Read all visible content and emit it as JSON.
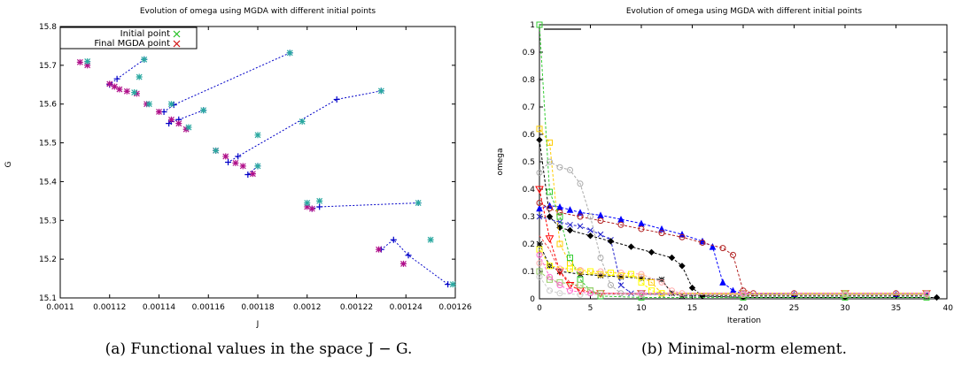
{
  "chart_data": [
    {
      "type": "scatter",
      "title": "Evolution of omega using MGDA with different initial points",
      "xlabel": "J",
      "ylabel": "G",
      "xlim": [
        0.0011,
        0.00126
      ],
      "ylim": [
        15.1,
        15.8
      ],
      "x_ticks": [
        "0.0011",
        "0.00112",
        "0.00114",
        "0.00116",
        "0.00118",
        "0.0012",
        "0.00122",
        "0.00124",
        "0.00126"
      ],
      "y_ticks": [
        "15.1",
        "15.2",
        "15.3",
        "15.4",
        "15.5",
        "15.6",
        "15.7",
        "15.8"
      ],
      "legend": [
        "Initial point",
        "Final MGDA point"
      ],
      "legend_position": "top-left",
      "colors": {
        "path": "#0000c8",
        "initial": "#22c022",
        "final": "#d01010"
      },
      "caption": "(a) Functional values in the space J − G.",
      "paths": [
        [
          [
            0.001193,
            15.732
          ],
          [
            0.001146,
            15.598
          ],
          [
            0.001142,
            15.58
          ]
        ],
        [
          [
            0.001158,
            15.584
          ],
          [
            0.001148,
            15.56
          ],
          [
            0.001145,
            15.555
          ],
          [
            0.001144,
            15.55
          ]
        ],
        [
          [
            0.00123,
            15.634
          ],
          [
            0.001212,
            15.612
          ],
          [
            0.001172,
            15.465
          ],
          [
            0.001168,
            15.45
          ]
        ],
        [
          [
            0.001245,
            15.345
          ],
          [
            0.001205,
            15.335
          ],
          [
            0.001202,
            15.33
          ]
        ],
        [
          [
            0.001257,
            15.135
          ],
          [
            0.001241,
            15.21
          ],
          [
            0.001235,
            15.25
          ],
          [
            0.00123,
            15.225
          ]
        ],
        [
          [
            0.001134,
            15.715
          ],
          [
            0.001123,
            15.665
          ],
          [
            0.00112,
            15.65
          ]
        ],
        [
          [
            0.00118,
            15.44
          ],
          [
            0.001176,
            15.418
          ]
        ]
      ],
      "initial_points": [
        [
          0.001117,
          15.765
        ],
        [
          0.001111,
          15.71
        ],
        [
          0.001134,
          15.715
        ],
        [
          0.001132,
          15.67
        ],
        [
          0.00113,
          15.63
        ],
        [
          0.001136,
          15.6
        ],
        [
          0.001145,
          15.6
        ],
        [
          0.001158,
          15.584
        ],
        [
          0.001152,
          15.54
        ],
        [
          0.001193,
          15.732
        ],
        [
          0.00123,
          15.634
        ],
        [
          0.001198,
          15.555
        ],
        [
          0.00118,
          15.52
        ],
        [
          0.00118,
          15.44
        ],
        [
          0.001163,
          15.48
        ],
        [
          0.001205,
          15.35
        ],
        [
          0.001245,
          15.345
        ],
        [
          0.0012,
          15.345
        ],
        [
          0.00125,
          15.25
        ],
        [
          0.001259,
          15.135
        ]
      ],
      "final_points": [
        [
          0.001108,
          15.708
        ],
        [
          0.001111,
          15.7
        ],
        [
          0.00112,
          15.652
        ],
        [
          0.001122,
          15.645
        ],
        [
          0.001124,
          15.638
        ],
        [
          0.001127,
          15.633
        ],
        [
          0.001131,
          15.627
        ],
        [
          0.001135,
          15.6
        ],
        [
          0.00114,
          15.58
        ],
        [
          0.001145,
          15.56
        ],
        [
          0.001148,
          15.55
        ],
        [
          0.001151,
          15.535
        ],
        [
          0.001163,
          15.48
        ],
        [
          0.001167,
          15.465
        ],
        [
          0.001171,
          15.448
        ],
        [
          0.001174,
          15.44
        ],
        [
          0.001178,
          15.42
        ],
        [
          0.0012,
          15.335
        ],
        [
          0.001202,
          15.33
        ],
        [
          0.001229,
          15.225
        ],
        [
          0.001239,
          15.188
        ]
      ]
    },
    {
      "type": "line",
      "title": "Evolution of omega using MGDA with different initial points",
      "xlabel": "Iteration",
      "ylabel": "omega",
      "xlim": [
        0,
        40
      ],
      "ylim": [
        0,
        1
      ],
      "x_ticks": [
        "0",
        "5",
        "10",
        "15",
        "20",
        "25",
        "30",
        "35",
        "40"
      ],
      "y_ticks": [
        "0",
        "0.1",
        "0.2",
        "0.3",
        "0.4",
        "0.5",
        "0.6",
        "0.7",
        "0.8",
        "0.9",
        "1"
      ],
      "caption": "(b) Minimal-norm element.",
      "series": [
        {
          "color": "#0000ff",
          "marker": "tri",
          "values": [
            [
              0,
              0.33
            ],
            [
              1,
              0.34
            ],
            [
              2,
              0.335
            ],
            [
              3,
              0.325
            ],
            [
              4,
              0.315
            ],
            [
              6,
              0.305
            ],
            [
              8,
              0.29
            ],
            [
              10,
              0.275
            ],
            [
              12,
              0.255
            ],
            [
              14,
              0.235
            ],
            [
              16,
              0.21
            ],
            [
              17,
              0.19
            ],
            [
              18,
              0.06
            ],
            [
              19,
              0.03
            ],
            [
              20,
              0.018
            ],
            [
              25,
              0.015
            ],
            [
              30,
              0.015
            ],
            [
              35,
              0.015
            ],
            [
              38,
              0.015
            ]
          ]
        },
        {
          "color": "#b22222",
          "marker": "circle",
          "values": [
            [
              0,
              0.35
            ],
            [
              1,
              0.33
            ],
            [
              2,
              0.315
            ],
            [
              4,
              0.3
            ],
            [
              6,
              0.285
            ],
            [
              8,
              0.27
            ],
            [
              10,
              0.255
            ],
            [
              12,
              0.24
            ],
            [
              14,
              0.225
            ],
            [
              16,
              0.205
            ],
            [
              18,
              0.185
            ],
            [
              19,
              0.16
            ],
            [
              20,
              0.03
            ],
            [
              21,
              0.02
            ],
            [
              25,
              0.02
            ],
            [
              30,
              0.02
            ],
            [
              35,
              0.02
            ],
            [
              38,
              0.02
            ]
          ]
        },
        {
          "color": "#2222cc",
          "marker": "x",
          "values": [
            [
              0,
              0.3
            ],
            [
              2,
              0.28
            ],
            [
              3,
              0.27
            ],
            [
              4,
              0.265
            ],
            [
              5,
              0.25
            ],
            [
              6,
              0.235
            ],
            [
              7,
              0.215
            ],
            [
              8,
              0.05
            ],
            [
              9,
              0.02
            ],
            [
              12,
              0.015
            ],
            [
              20,
              0.015
            ],
            [
              30,
              0.015
            ],
            [
              38,
              0.015
            ]
          ]
        },
        {
          "color": "#000000",
          "marker": "diamond",
          "values": [
            [
              0,
              0.58
            ],
            [
              1,
              0.3
            ],
            [
              2,
              0.26
            ],
            [
              3,
              0.25
            ],
            [
              5,
              0.23
            ],
            [
              7,
              0.21
            ],
            [
              9,
              0.19
            ],
            [
              11,
              0.17
            ],
            [
              13,
              0.15
            ],
            [
              14,
              0.12
            ],
            [
              15,
              0.04
            ],
            [
              16,
              0.01
            ],
            [
              20,
              0.005
            ],
            [
              30,
              0.005
            ],
            [
              39,
              0.005
            ]
          ]
        },
        {
          "color": "#000000",
          "marker": "star",
          "values": [
            [
              0,
              0.2
            ],
            [
              1,
              0.12
            ],
            [
              2,
              0.1
            ],
            [
              4,
              0.09
            ],
            [
              6,
              0.085
            ],
            [
              8,
              0.08
            ],
            [
              10,
              0.075
            ],
            [
              12,
              0.07
            ],
            [
              13,
              0.02
            ],
            [
              14,
              0.01
            ],
            [
              20,
              0.01
            ],
            [
              30,
              0.01
            ],
            [
              38,
              0.01
            ]
          ]
        },
        {
          "color": "#ff0000",
          "marker": "invtri",
          "values": [
            [
              0,
              0.4
            ],
            [
              1,
              0.22
            ],
            [
              2,
              0.1
            ],
            [
              3,
              0.05
            ],
            [
              4,
              0.03
            ],
            [
              6,
              0.02
            ],
            [
              10,
              0.02
            ],
            [
              20,
              0.02
            ],
            [
              30,
              0.02
            ],
            [
              38,
              0.02
            ]
          ]
        },
        {
          "color": "#ee4444",
          "marker": "none",
          "values": [
            [
              0,
              0.23
            ],
            [
              1,
              0.18
            ],
            [
              2,
              0.1
            ],
            [
              3,
              0.06
            ],
            [
              4,
              0.04
            ],
            [
              5,
              0.02
            ],
            [
              10,
              0.015
            ],
            [
              20,
              0.015
            ],
            [
              30,
              0.015
            ],
            [
              38,
              0.015
            ]
          ]
        },
        {
          "color": "#ffcc00",
          "marker": "square",
          "values": [
            [
              0,
              0.62
            ],
            [
              1,
              0.57
            ],
            [
              2,
              0.2
            ],
            [
              3,
              0.13
            ],
            [
              4,
              0.1
            ],
            [
              6,
              0.09
            ],
            [
              8,
              0.085
            ],
            [
              10,
              0.08
            ],
            [
              11,
              0.06
            ],
            [
              12,
              0.02
            ],
            [
              20,
              0.015
            ],
            [
              30,
              0.015
            ],
            [
              38,
              0.015
            ]
          ]
        },
        {
          "color": "#33cc33",
          "marker": "square",
          "values": [
            [
              0,
              1.0
            ],
            [
              1,
              0.39
            ],
            [
              2,
              0.3
            ],
            [
              3,
              0.15
            ],
            [
              4,
              0.07
            ],
            [
              5,
              0.03
            ],
            [
              6,
              0.01
            ],
            [
              10,
              0.005
            ],
            [
              20,
              0.005
            ],
            [
              30,
              0.005
            ],
            [
              38,
              0.005
            ]
          ]
        },
        {
          "color": "#aaaaaa",
          "marker": "circle",
          "values": [
            [
              0,
              0.46
            ],
            [
              1,
              0.5
            ],
            [
              2,
              0.48
            ],
            [
              3,
              0.47
            ],
            [
              4,
              0.42
            ],
            [
              5,
              0.3
            ],
            [
              6,
              0.15
            ],
            [
              7,
              0.05
            ],
            [
              8,
              0.02
            ],
            [
              10,
              0.02
            ],
            [
              20,
              0.02
            ],
            [
              30,
              0.02
            ],
            [
              38,
              0.02
            ]
          ]
        },
        {
          "color": "#ffaaaa",
          "marker": "circle",
          "values": [
            [
              0,
              0.13
            ],
            [
              2,
              0.11
            ],
            [
              4,
              0.105
            ],
            [
              6,
              0.1
            ],
            [
              8,
              0.095
            ],
            [
              10,
              0.09
            ],
            [
              12,
              0.06
            ],
            [
              13,
              0.03
            ],
            [
              14,
              0.02
            ],
            [
              20,
              0.02
            ],
            [
              30,
              0.02
            ],
            [
              38,
              0.02
            ]
          ]
        },
        {
          "color": "#ffff00",
          "marker": "square",
          "values": [
            [
              0,
              0.18
            ],
            [
              1,
              0.12
            ],
            [
              3,
              0.11
            ],
            [
              5,
              0.1
            ],
            [
              7,
              0.095
            ],
            [
              9,
              0.09
            ],
            [
              10,
              0.06
            ],
            [
              11,
              0.03
            ],
            [
              12,
              0.02
            ],
            [
              20,
              0.02
            ],
            [
              30,
              0.02
            ],
            [
              38,
              0.02
            ]
          ]
        },
        {
          "color": "#99cc66",
          "marker": "square",
          "values": [
            [
              0,
              0.1
            ],
            [
              1,
              0.07
            ],
            [
              2,
              0.06
            ],
            [
              4,
              0.05
            ],
            [
              5,
              0.03
            ],
            [
              6,
              0.02
            ],
            [
              10,
              0.02
            ],
            [
              20,
              0.02
            ],
            [
              30,
              0.02
            ],
            [
              38,
              0.02
            ]
          ]
        },
        {
          "color": "#cccccc",
          "marker": "circle",
          "values": [
            [
              0,
              0.08
            ],
            [
              1,
              0.03
            ],
            [
              2,
              0.02
            ],
            [
              4,
              0.015
            ],
            [
              10,
              0.015
            ],
            [
              20,
              0.015
            ],
            [
              30,
              0.015
            ],
            [
              38,
              0.015
            ]
          ]
        },
        {
          "color": "#ff66cc",
          "marker": "circle",
          "values": [
            [
              0,
              0.16
            ],
            [
              1,
              0.08
            ],
            [
              2,
              0.05
            ],
            [
              3,
              0.03
            ],
            [
              5,
              0.02
            ],
            [
              10,
              0.02
            ],
            [
              20,
              0.02
            ],
            [
              38,
              0.02
            ]
          ]
        }
      ]
    }
  ]
}
